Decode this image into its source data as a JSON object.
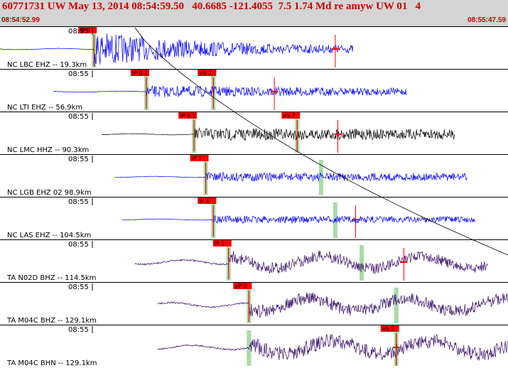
{
  "header": {
    "title": "60771731 UW May 13, 2014 08:54:59.50   40.6685 -121.4055  7.5 1.74 Md re amyw UW 01   4",
    "start_time": "08:54:52.99",
    "end_time": "08:55:47.59"
  },
  "colors": {
    "header_bg": "#d4d4d4",
    "header_text": "#cc0000",
    "blue_trace": "#0000ff",
    "black_trace": "#000000",
    "purple_trace": "#3a0f6b",
    "pick_box": "#ff0000",
    "pick_band": "#a8dca8",
    "theoretical_curve": "#000000"
  },
  "traces": [
    {
      "label": "NC LBC EHZ -- 19.3km",
      "tick": "08:55",
      "color": "blue",
      "start": 0.0,
      "end": 0.695,
      "onset": 0.185,
      "amp": 0.85,
      "decay": 2.5,
      "p_pick": "iP 0",
      "p_at": 0.185,
      "s_pick": "",
      "s_at": null,
      "red_marker": 0.66
    },
    {
      "label": "NC LTI EHZ -- 56.9km",
      "tick": "08:55",
      "color": "blue",
      "start": 0.105,
      "end": 0.8,
      "onset": 0.288,
      "amp": 0.28,
      "decay": 0.6,
      "p_pick": "iP 0.1",
      "p_at": 0.288,
      "s_pick": "eS 2",
      "s_at": 0.42,
      "red_marker": 0.54
    },
    {
      "label": "NC LMC HHZ -- 90.3km",
      "tick": "08:55",
      "color": "black",
      "start": 0.2,
      "end": 0.895,
      "onset": 0.382,
      "amp": 0.3,
      "decay": 0.3,
      "p_pick": "iP 0.1",
      "p_at": 0.382,
      "s_pick": "eS 2",
      "s_at": 0.585,
      "red_marker": 0.665
    },
    {
      "label": "NC LGB EHZ 02 98.9km",
      "tick": "08:55",
      "color": "blue",
      "start": 0.225,
      "end": 0.92,
      "onset": 0.405,
      "amp": 0.22,
      "decay": 0.3,
      "p_pick": "iP 1",
      "p_at": 0.405,
      "s_pick": "",
      "s_at": 0.632,
      "red_marker": null
    },
    {
      "label": "NC LAS EHZ -- 104.5km",
      "tick": "08:55",
      "color": "blue",
      "start": 0.24,
      "end": 0.935,
      "onset": 0.42,
      "amp": 0.18,
      "decay": 0.3,
      "p_pick": "iP 1",
      "p_at": 0.42,
      "s_pick": "",
      "s_at": 0.66,
      "red_marker": 0.7
    },
    {
      "label": "TA N02D BHZ -- 114.5km",
      "tick": "08:55",
      "color": "purple",
      "start": 0.265,
      "end": 0.96,
      "onset": 0.45,
      "amp": 0.28,
      "decay": 0.2,
      "p_pick": "iP 1",
      "p_at": 0.45,
      "s_pick": "",
      "s_at": 0.712,
      "red_marker": 0.795
    },
    {
      "label": "TA M04C BHZ -- 129.1km",
      "tick": "08:55",
      "color": "purple",
      "start": 0.31,
      "end": 1.0,
      "onset": 0.49,
      "amp": 0.3,
      "decay": 0.1,
      "p_pick": "eP 2",
      "p_at": 0.49,
      "s_pick": "",
      "s_at": 0.78,
      "red_marker": null
    },
    {
      "label": "TA M04C BHN -- 129.1km",
      "tick": "08:55",
      "color": "purple",
      "start": 0.31,
      "end": 1.0,
      "onset": 0.49,
      "amp": 0.35,
      "decay": 0.1,
      "p_pick": "",
      "p_at": 0.49,
      "s_pick": "eS 2",
      "s_at": 0.78,
      "red_marker": 0.78
    }
  ]
}
